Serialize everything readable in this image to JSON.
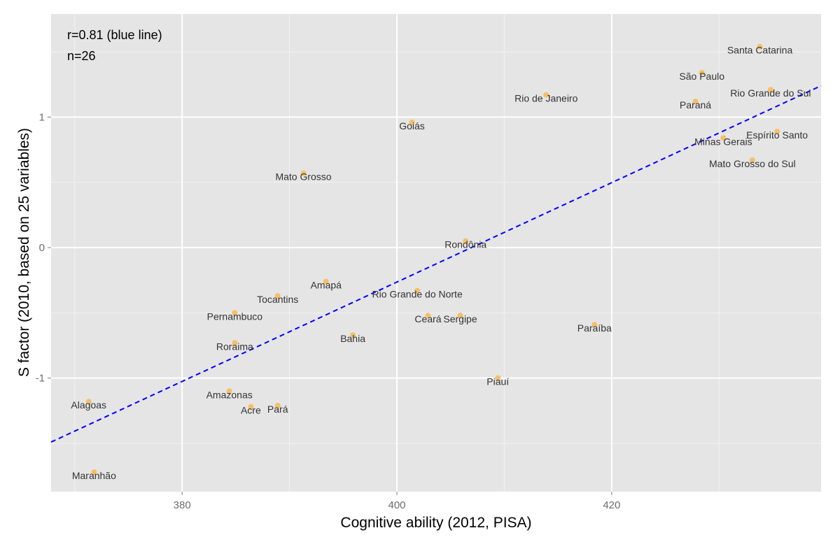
{
  "chart_data": {
    "type": "scatter",
    "title": "",
    "xlabel": "Cognitive ability (2012, PISA)",
    "ylabel": "S factor (2010, based on 25 variables)",
    "xlim": [
      367.8,
      439.5
    ],
    "ylim": [
      -1.87,
      1.79
    ],
    "x_ticks": [
      380,
      400,
      420
    ],
    "y_ticks": [
      -1,
      0,
      1
    ],
    "grid": true,
    "legend": "none",
    "annotations": [
      "r=0.81 (blue line)",
      "n=26"
    ],
    "trend_line": {
      "style": "dashed",
      "color": "#0000ff",
      "start": [
        367.8,
        -1.49
      ],
      "end": [
        439.5,
        1.24
      ]
    },
    "points": [
      {
        "label": "Santa Catarina",
        "x": 433.8,
        "y": 1.54
      },
      {
        "label": "São Paulo",
        "x": 428.4,
        "y": 1.34
      },
      {
        "label": "Rio Grande do Sul",
        "x": 434.8,
        "y": 1.21
      },
      {
        "label": "Rio de Janeiro",
        "x": 413.9,
        "y": 1.17
      },
      {
        "label": "Paraná",
        "x": 427.8,
        "y": 1.12
      },
      {
        "label": "Goiás",
        "x": 401.4,
        "y": 0.96
      },
      {
        "label": "Espírito Santo",
        "x": 435.4,
        "y": 0.89
      },
      {
        "label": "Minas Gerais",
        "x": 430.4,
        "y": 0.84
      },
      {
        "label": "Mato Grosso do Sul",
        "x": 433.1,
        "y": 0.67
      },
      {
        "label": "Mato Grosso",
        "x": 391.3,
        "y": 0.57
      },
      {
        "label": "Rondônia",
        "x": 406.4,
        "y": 0.05
      },
      {
        "label": "Amapá",
        "x": 393.4,
        "y": -0.26
      },
      {
        "label": "Rio Grande do Norte",
        "x": 401.9,
        "y": -0.33
      },
      {
        "label": "Tocantins",
        "x": 388.9,
        "y": -0.37
      },
      {
        "label": "Pernambuco",
        "x": 384.9,
        "y": -0.5
      },
      {
        "label": "Ceará",
        "x": 402.9,
        "y": -0.52
      },
      {
        "label": "Sergipe",
        "x": 405.9,
        "y": -0.52
      },
      {
        "label": "Paraíba",
        "x": 418.4,
        "y": -0.59
      },
      {
        "label": "Bahia",
        "x": 395.9,
        "y": -0.67
      },
      {
        "label": "Roraima",
        "x": 384.9,
        "y": -0.73
      },
      {
        "label": "Piauí",
        "x": 409.4,
        "y": -1.0
      },
      {
        "label": "Amazonas",
        "x": 384.4,
        "y": -1.1
      },
      {
        "label": "Alagoas",
        "x": 371.3,
        "y": -1.18
      },
      {
        "label": "Pará",
        "x": 388.9,
        "y": -1.21
      },
      {
        "label": "Acre",
        "x": 386.4,
        "y": -1.22
      },
      {
        "label": "Maranhão",
        "x": 371.8,
        "y": -1.72
      }
    ]
  },
  "colors": {
    "panel": "#e5e5e5",
    "grid_major": "#ffffff",
    "grid_minor": "#f2f2f2",
    "point": "#f5bf6a",
    "trend": "#0000ff"
  }
}
